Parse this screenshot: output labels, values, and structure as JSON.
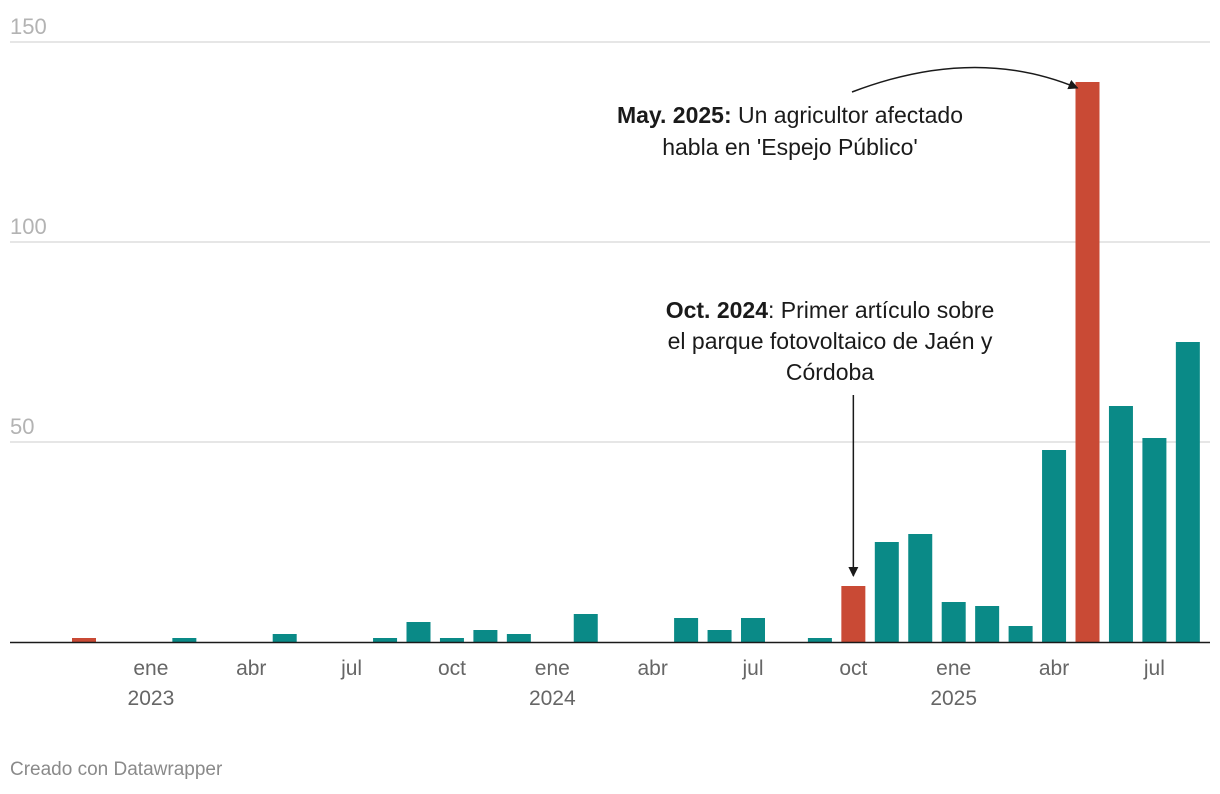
{
  "chart_data": {
    "type": "bar",
    "ylim": [
      0,
      150
    ],
    "yticks": [
      {
        "value": 50,
        "label": "50"
      },
      {
        "value": 100,
        "label": "100"
      },
      {
        "value": 150,
        "label": "150"
      }
    ],
    "xticks": [
      {
        "month": "2023-01",
        "label": "ene",
        "year": "2023"
      },
      {
        "month": "2023-04",
        "label": "abr"
      },
      {
        "month": "2023-07",
        "label": "jul"
      },
      {
        "month": "2023-10",
        "label": "oct"
      },
      {
        "month": "2024-01",
        "label": "ene",
        "year": "2024"
      },
      {
        "month": "2024-04",
        "label": "abr"
      },
      {
        "month": "2024-07",
        "label": "jul"
      },
      {
        "month": "2024-10",
        "label": "oct"
      },
      {
        "month": "2025-01",
        "label": "ene",
        "year": "2025"
      },
      {
        "month": "2025-04",
        "label": "abr"
      },
      {
        "month": "2025-07",
        "label": "jul"
      }
    ],
    "categories": [
      "2022-11",
      "2022-12",
      "2023-01",
      "2023-02",
      "2023-03",
      "2023-04",
      "2023-05",
      "2023-06",
      "2023-07",
      "2023-08",
      "2023-09",
      "2023-10",
      "2023-11",
      "2023-12",
      "2024-01",
      "2024-02",
      "2024-03",
      "2024-04",
      "2024-05",
      "2024-06",
      "2024-07",
      "2024-08",
      "2024-09",
      "2024-10",
      "2024-11",
      "2024-12",
      "2025-01",
      "2025-02",
      "2025-03",
      "2025-04",
      "2025-05",
      "2025-06",
      "2025-07",
      "2025-08"
    ],
    "values": [
      1,
      0,
      0,
      1,
      0,
      0,
      2,
      0,
      0,
      1,
      5,
      1,
      3,
      2,
      0,
      7,
      0,
      0,
      6,
      3,
      6,
      0,
      1,
      14,
      25,
      27,
      10,
      9,
      4,
      48,
      140,
      59,
      51,
      75
    ],
    "highlight": [
      "2022-11",
      "2024-10",
      "2025-05"
    ],
    "colors": {
      "default": "#0a8a87",
      "highlight": "#c94a35"
    },
    "annotations": [
      {
        "target": "2025-05",
        "bold": "May. 2025:",
        "lines": [
          "Un agricultor afectado",
          "habla en 'Espejo Público'"
        ]
      },
      {
        "target": "2024-10",
        "bold": "Oct. 2024",
        "lines": [
          ": Primer artículo sobre",
          "el parque fotovoltaico de Jaén y",
          "Córdoba"
        ]
      }
    ]
  },
  "footer": {
    "credit": "Creado con Datawrapper"
  }
}
